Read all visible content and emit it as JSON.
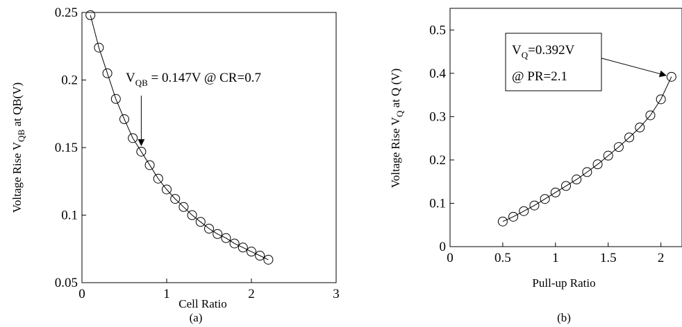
{
  "chart_data": [
    {
      "type": "line",
      "panel_label": "(a)",
      "xlabel": "Cell Ratio",
      "ylabel": {
        "main": "Voltage Rise V",
        "sub": "QB",
        "tail": " at QB(V)"
      },
      "xlim": [
        0,
        3
      ],
      "ylim": [
        0.05,
        0.25
      ],
      "xticks": [
        "0",
        "1",
        "2",
        "3"
      ],
      "yticks": [
        "0.05",
        "0.1",
        "0.15",
        "0.2",
        "0.25"
      ],
      "grid": false,
      "marker": "circle",
      "series": [
        {
          "x": [
            0.1,
            0.2,
            0.3,
            0.4,
            0.5,
            0.6,
            0.7,
            0.8,
            0.9,
            1.0,
            1.1,
            1.2,
            1.3,
            1.4,
            1.5,
            1.6,
            1.7,
            1.8,
            1.9,
            2.0,
            2.1,
            2.2
          ],
          "values": [
            0.248,
            0.224,
            0.205,
            0.186,
            0.171,
            0.157,
            0.147,
            0.137,
            0.127,
            0.119,
            0.112,
            0.106,
            0.1,
            0.095,
            0.09,
            0.086,
            0.083,
            0.079,
            0.076,
            0.073,
            0.07,
            0.067
          ]
        }
      ],
      "annotation": {
        "prefix": "V",
        "sub": "QB",
        "rest": " = 0.147V @ CR=0.7",
        "point": [
          0.7,
          0.147
        ]
      }
    },
    {
      "type": "line",
      "panel_label": "(b)",
      "xlabel": "Pull-up Ratio",
      "ylabel": {
        "main": "Voltage Rise V",
        "sub": "Q",
        "tail": " at Q (V)"
      },
      "xlim": [
        0,
        2.2
      ],
      "ylim": [
        0,
        0.55
      ],
      "xticks": [
        "0",
        "0.5",
        "1",
        "1.5",
        "2"
      ],
      "yticks": [
        "0",
        "0.1",
        "0.2",
        "0.3",
        "0.4",
        "0.5"
      ],
      "grid": false,
      "marker": "circle",
      "series": [
        {
          "x": [
            0.5,
            0.6,
            0.7,
            0.8,
            0.9,
            1.0,
            1.1,
            1.2,
            1.3,
            1.4,
            1.5,
            1.6,
            1.7,
            1.8,
            1.9,
            2.0,
            2.1
          ],
          "values": [
            0.058,
            0.069,
            0.082,
            0.095,
            0.11,
            0.125,
            0.14,
            0.155,
            0.172,
            0.19,
            0.21,
            0.23,
            0.252,
            0.275,
            0.303,
            0.34,
            0.392
          ]
        }
      ],
      "annotation": {
        "line1_prefix": "V",
        "line1_sub": "Q",
        "line1_rest": "=0.392V",
        "line2": "@ PR=2.1",
        "point": [
          2.1,
          0.392
        ]
      }
    }
  ]
}
